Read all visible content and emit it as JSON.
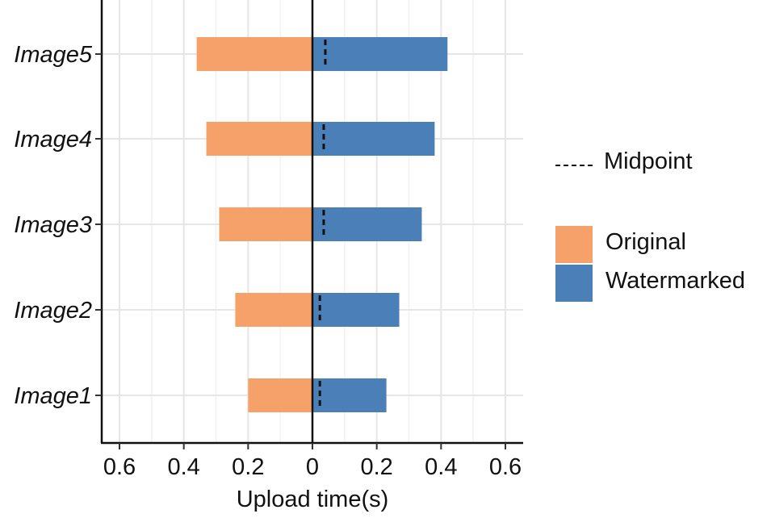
{
  "chart_data": {
    "type": "bar",
    "orientation": "horizontal",
    "layout": "diverging",
    "categories": [
      "Image1",
      "Image2",
      "Image3",
      "Image4",
      "Image5"
    ],
    "series": [
      {
        "name": "Original",
        "side": "left",
        "color": "#F7A16A",
        "values": [
          0.2,
          0.24,
          0.29,
          0.33,
          0.36
        ]
      },
      {
        "name": "Watermarked",
        "side": "right",
        "color": "#4A80B7",
        "values": [
          0.23,
          0.27,
          0.34,
          0.38,
          0.42
        ]
      }
    ],
    "midpoint": {
      "name": "Midpoint",
      "values": [
        0.013,
        0.013,
        0.025,
        0.025,
        0.03
      ]
    },
    "xlabel": "Upload time(s)",
    "ylabel": "",
    "xticks": [
      -0.6,
      -0.4,
      -0.2,
      0,
      0.2,
      0.4,
      0.6
    ],
    "xtick_labels": [
      "0.6",
      "0.4",
      "0.2",
      "0",
      "0.2",
      "0.4",
      "0.6"
    ],
    "xlim": [
      -0.66,
      0.66
    ],
    "grid": true,
    "legend_position": "right"
  }
}
